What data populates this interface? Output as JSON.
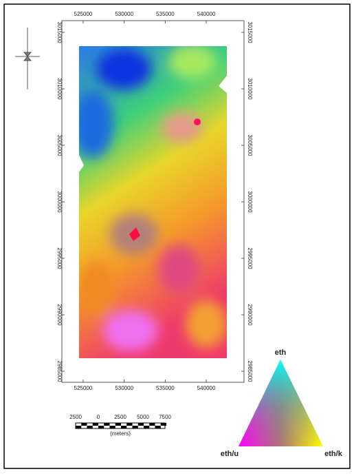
{
  "map": {
    "x_ticks": [
      525000,
      530000,
      535000,
      540000
    ],
    "y_ticks": [
      3015000,
      3010000,
      3005000,
      3000000,
      2995000,
      2990000,
      2985000
    ]
  },
  "scale_bar": {
    "labels": [
      2500,
      0,
      2500,
      5000,
      7500
    ],
    "unit": "(meters)"
  },
  "ternary": {
    "top": "eth",
    "left": "eth/u",
    "right": "eth/k"
  }
}
